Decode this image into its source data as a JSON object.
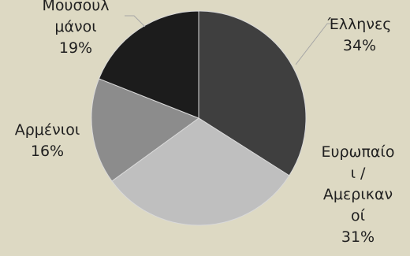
{
  "chart_data": {
    "type": "pie",
    "title": "",
    "start_angle_deg": 0,
    "direction": "clockwise",
    "slices": [
      {
        "label": "Έλληνες",
        "value": 34,
        "value_label": "34%",
        "color": "#3f3f3f",
        "label_lines": [
          "Έλληνες",
          "34%"
        ]
      },
      {
        "label": "Ευρωπαίοι / Αμερικανοί",
        "value": 31,
        "value_label": "31%",
        "color": "#bfbfbf",
        "label_lines": [
          "Ευρωπαίο",
          "ι /",
          "Αμερικαν",
          "οί",
          "31%"
        ]
      },
      {
        "label": "Αρμένιοι",
        "value": 16,
        "value_label": "16%",
        "color": "#8c8c8c",
        "label_lines": [
          "Αρμένιοι",
          "16%"
        ]
      },
      {
        "label": "Μουσουλμάνοι",
        "value": 19,
        "value_label": "19%",
        "color": "#1c1c1c",
        "label_lines": [
          "Μουσουλ",
          "μάνοι",
          "19%"
        ]
      }
    ],
    "slice_border": "#d9d9d9",
    "legend": "none",
    "data_labels": "outside-with-leader-lines"
  }
}
